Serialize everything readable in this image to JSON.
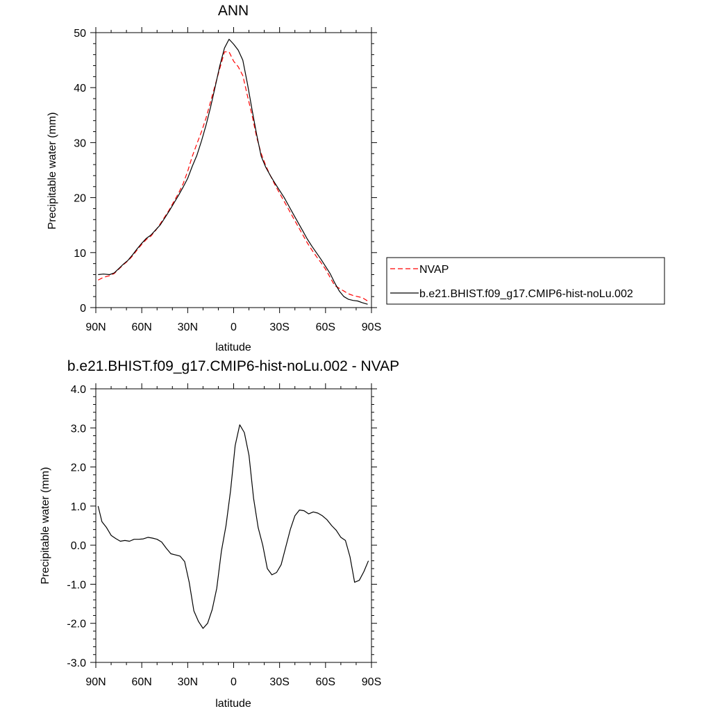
{
  "chart_data": [
    {
      "type": "line",
      "title": "ANN",
      "xlabel": "latitude",
      "ylabel": "Precipitable water (mm)",
      "xlim": [
        -90,
        90
      ],
      "ylim": [
        0,
        50
      ],
      "x_ticks": [
        -90,
        -60,
        -30,
        0,
        30,
        60,
        90
      ],
      "x_tick_labels": [
        "90N",
        "60N",
        "30N",
        "0",
        "30S",
        "60S",
        "90S"
      ],
      "y_ticks": [
        0,
        10,
        20,
        30,
        40,
        50
      ],
      "y_tick_labels": [
        "0",
        "10",
        "20",
        "30",
        "40",
        "50"
      ],
      "legend_position": "right",
      "series": [
        {
          "name": "NVAP",
          "style": "dashed",
          "color": "#ff0000",
          "x": [
            -88.5,
            -85,
            -81,
            -78,
            -75,
            -72,
            -69,
            -66,
            -63,
            -60,
            -57,
            -54,
            -51,
            -48,
            -45,
            -42,
            -39,
            -36,
            -33,
            -30,
            -27,
            -24,
            -21,
            -18,
            -15,
            -12,
            -9,
            -6,
            -3,
            0,
            3,
            6,
            9,
            12,
            15,
            18,
            21,
            24,
            27,
            30,
            33,
            36,
            39,
            42,
            45,
            48,
            51,
            54,
            57,
            60,
            63,
            66,
            69,
            72,
            75,
            78,
            81,
            84,
            87.5
          ],
          "y": [
            5.0,
            5.5,
            5.8,
            6.2,
            7.0,
            7.8,
            8.5,
            9.4,
            10.5,
            11.5,
            12.4,
            13.0,
            14.0,
            15.2,
            16.5,
            17.8,
            19.3,
            20.8,
            22.5,
            24.8,
            27.5,
            29.8,
            32.0,
            34.5,
            37.5,
            40.5,
            43.5,
            46.5,
            46.5,
            44.8,
            43.8,
            42.2,
            38.5,
            35.0,
            31.0,
            28.0,
            25.8,
            24.0,
            22.3,
            20.8,
            19.3,
            17.8,
            16.3,
            14.8,
            13.3,
            11.8,
            10.5,
            9.3,
            8.2,
            7.0,
            5.5,
            4.0,
            3.5,
            3.0,
            2.5,
            2.2,
            2.0,
            1.8,
            1.2
          ]
        },
        {
          "name": "b.e21.BHIST.f09_g17.CMIP6-hist-noLu.002",
          "style": "solid",
          "color": "#000000",
          "x": [
            -88.5,
            -85,
            -81,
            -78,
            -75,
            -72,
            -69,
            -66,
            -63,
            -60,
            -57,
            -54,
            -51,
            -48,
            -45,
            -42,
            -39,
            -36,
            -33,
            -30,
            -27,
            -24,
            -21,
            -18,
            -15,
            -12,
            -9,
            -6,
            -3,
            0,
            3,
            6,
            9,
            12,
            15,
            18,
            21,
            24,
            27,
            30,
            33,
            36,
            39,
            42,
            45,
            48,
            51,
            54,
            57,
            60,
            63,
            66,
            69,
            72,
            75,
            78,
            81,
            84,
            87.5
          ],
          "y": [
            6.0,
            6.1,
            6.0,
            6.3,
            7.1,
            7.9,
            8.6,
            9.6,
            10.7,
            11.7,
            12.6,
            13.2,
            14.1,
            15.0,
            16.3,
            17.6,
            19.0,
            20.4,
            21.9,
            23.5,
            25.7,
            27.7,
            30.3,
            33.2,
            36.5,
            40.2,
            44.0,
            47.2,
            48.8,
            47.9,
            46.8,
            45.0,
            40.7,
            36.0,
            31.5,
            27.5,
            25.5,
            24.0,
            22.6,
            21.3,
            20.0,
            18.5,
            17.0,
            15.5,
            14.0,
            12.5,
            11.2,
            10.0,
            8.8,
            7.5,
            6.2,
            4.5,
            3.0,
            2.0,
            1.5,
            1.3,
            1.2,
            0.9,
            0.6
          ]
        }
      ]
    },
    {
      "type": "line",
      "title": "b.e21.BHIST.f09_g17.CMIP6-hist-noLu.002 - NVAP",
      "xlabel": "latitude",
      "ylabel": "Precipitable water (mm)",
      "xlim": [
        -90,
        90
      ],
      "ylim": [
        -3.0,
        4.0
      ],
      "x_ticks": [
        -90,
        -60,
        -30,
        0,
        30,
        60,
        90
      ],
      "x_tick_labels": [
        "90N",
        "60N",
        "30N",
        "0",
        "30S",
        "60S",
        "90S"
      ],
      "y_ticks": [
        -3,
        -2,
        -1,
        0,
        1,
        2,
        3,
        4
      ],
      "y_tick_labels": [
        "-3.0",
        "-2.0",
        "-1.0",
        "0.0",
        "1.0",
        "2.0",
        "3.0",
        "4.0"
      ],
      "series": [
        {
          "style": "solid",
          "color": "#000000",
          "x": [
            -88.5,
            -86,
            -83,
            -80,
            -77,
            -74,
            -71,
            -68,
            -65,
            -62,
            -59,
            -56,
            -53,
            -50,
            -47,
            -44,
            -41,
            -38,
            -35,
            -32,
            -29,
            -26,
            -23,
            -20,
            -17,
            -14,
            -11,
            -8,
            -5,
            -2,
            1,
            4,
            7,
            10,
            13,
            16,
            19,
            22,
            25,
            28,
            31,
            34,
            37,
            40,
            43,
            46,
            49,
            52,
            55,
            58,
            61,
            64,
            67,
            70,
            73,
            76,
            79,
            82,
            85,
            88
          ],
          "y": [
            1.0,
            0.6,
            0.45,
            0.25,
            0.17,
            0.1,
            0.12,
            0.1,
            0.15,
            0.15,
            0.16,
            0.2,
            0.18,
            0.15,
            0.08,
            -0.08,
            -0.22,
            -0.25,
            -0.28,
            -0.42,
            -0.95,
            -1.68,
            -1.95,
            -2.13,
            -2.0,
            -1.65,
            -1.1,
            -0.15,
            0.5,
            1.4,
            2.55,
            3.08,
            2.88,
            2.3,
            1.2,
            0.45,
            0.0,
            -0.6,
            -0.76,
            -0.7,
            -0.5,
            -0.05,
            0.4,
            0.75,
            0.9,
            0.88,
            0.8,
            0.85,
            0.82,
            0.75,
            0.65,
            0.5,
            0.38,
            0.2,
            0.12,
            -0.3,
            -0.95,
            -0.9,
            -0.68,
            -0.4
          ]
        }
      ]
    }
  ]
}
